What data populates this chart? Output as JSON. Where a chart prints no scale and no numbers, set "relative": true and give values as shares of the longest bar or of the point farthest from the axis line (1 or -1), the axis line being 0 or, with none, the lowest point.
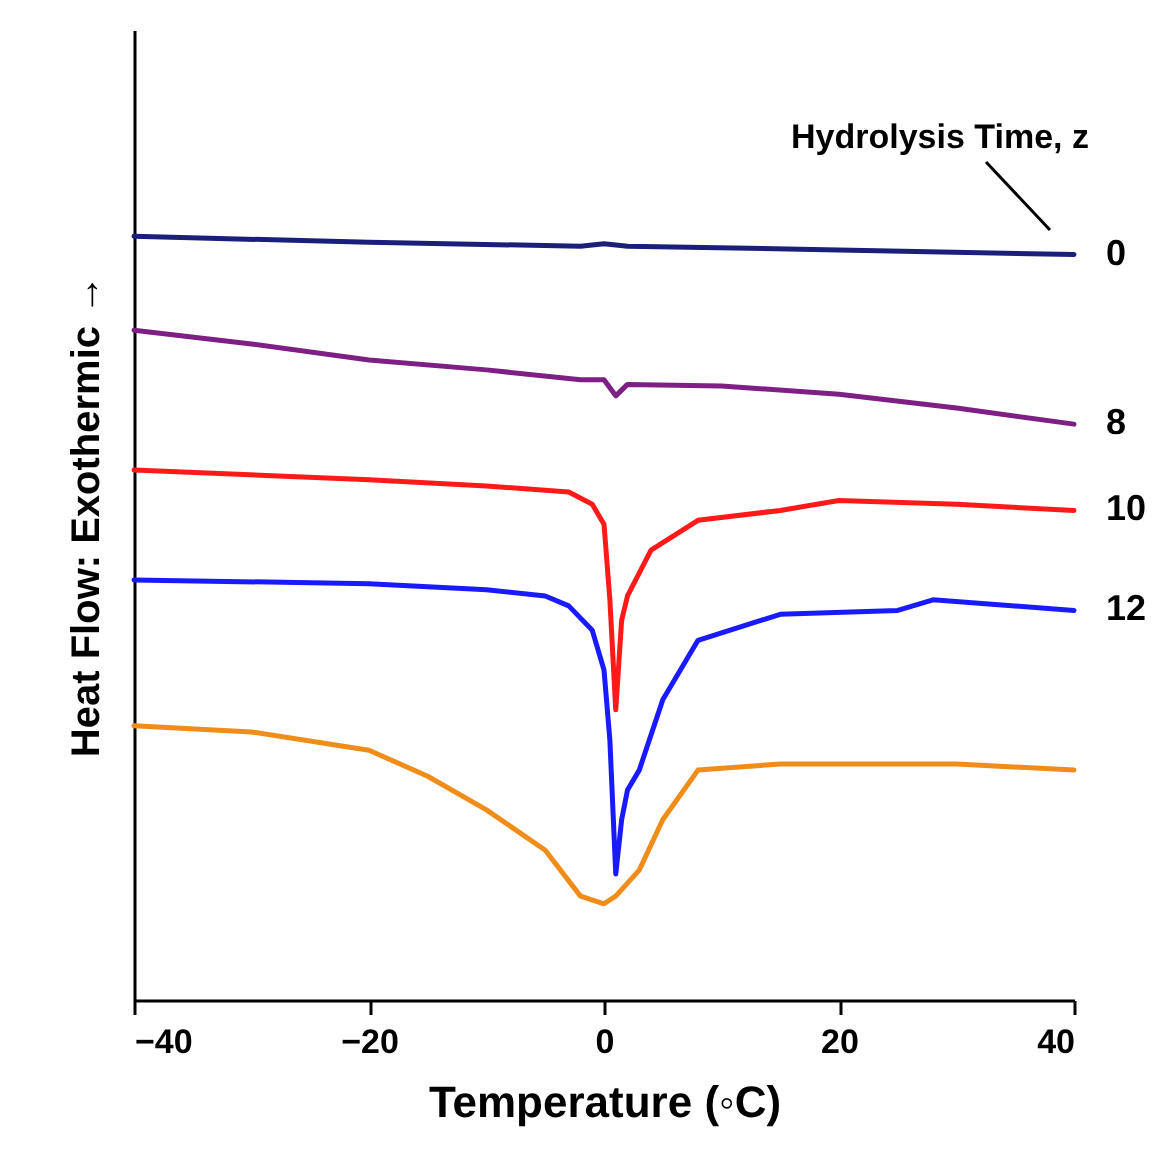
{
  "chart_data": {
    "type": "line",
    "relative": true,
    "xlabel": "Temperature (◦C)",
    "ylabel": "Heat Flow: Exothermic →",
    "legend_title": "Hydrolysis Time, z",
    "xlim": [
      -40,
      40
    ],
    "xticks": [
      -40,
      -20,
      0,
      20,
      40
    ],
    "legend": false,
    "line_style": "solid",
    "marker": "none",
    "series": [
      {
        "name": "0",
        "color": "#1a1f7a",
        "x": [
          -40,
          -20,
          -2,
          0,
          2,
          20,
          40
        ],
        "values": [
          1.0,
          0.992,
          0.987,
          0.99,
          0.987,
          0.982,
          0.976
        ]
      },
      {
        "name": "8",
        "color": "#7e1f86",
        "x": [
          -40,
          -30,
          -20,
          -10,
          -2,
          0,
          1,
          2,
          10,
          20,
          30,
          40
        ],
        "values": [
          0.877,
          0.859,
          0.838,
          0.825,
          0.812,
          0.812,
          0.791,
          0.806,
          0.804,
          0.793,
          0.775,
          0.754
        ]
      },
      {
        "name": "10",
        "color": "#ff1a1a",
        "x": [
          -40,
          -20,
          -10,
          -3,
          -1,
          0,
          0.5,
          1,
          1.5,
          2,
          4,
          8,
          15,
          20,
          30,
          40
        ],
        "values": [
          0.694,
          0.681,
          0.673,
          0.665,
          0.649,
          0.623,
          0.524,
          0.38,
          0.497,
          0.529,
          0.589,
          0.628,
          0.641,
          0.654,
          0.649,
          0.641
        ]
      },
      {
        "name": "12",
        "color": "#1a1aff",
        "x": [
          -40,
          -20,
          -10,
          -5,
          -3,
          -1,
          0,
          0.5,
          1,
          1.5,
          2,
          3,
          5,
          8,
          15,
          25,
          28,
          40
        ],
        "values": [
          0.55,
          0.545,
          0.537,
          0.529,
          0.516,
          0.484,
          0.432,
          0.34,
          0.165,
          0.236,
          0.275,
          0.301,
          0.393,
          0.471,
          0.505,
          0.51,
          0.524,
          0.51
        ]
      },
      {
        "color": "#f08c1a",
        "x": [
          -40,
          -30,
          -20,
          -15,
          -10,
          -5,
          -2,
          0,
          1,
          3,
          5,
          8,
          15,
          30,
          40
        ],
        "values": [
          0.359,
          0.351,
          0.327,
          0.293,
          0.249,
          0.196,
          0.136,
          0.126,
          0.136,
          0.17,
          0.236,
          0.301,
          0.309,
          0.309,
          0.301
        ]
      }
    ]
  }
}
